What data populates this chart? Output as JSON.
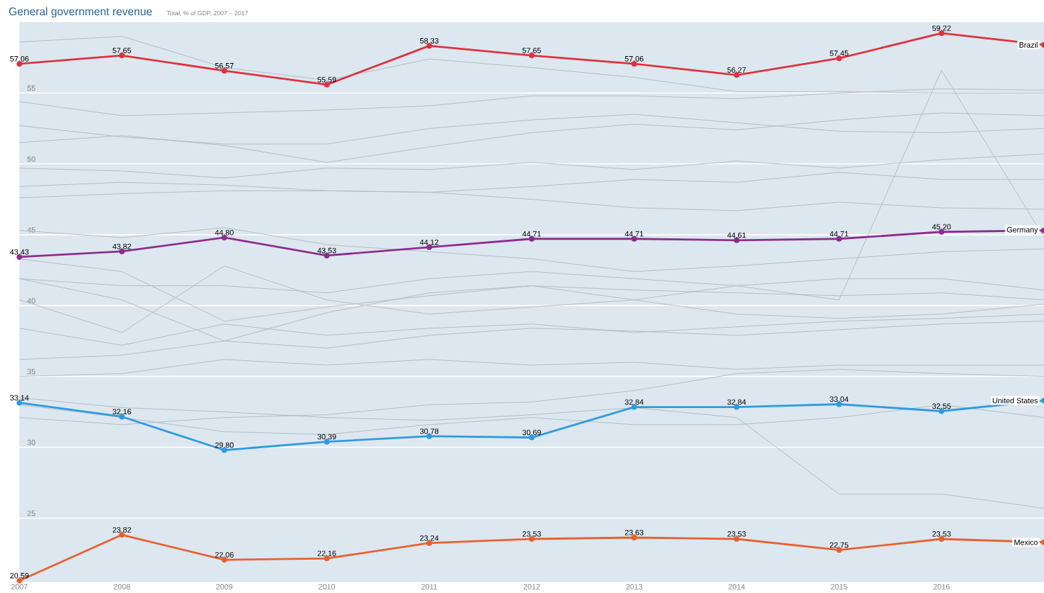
{
  "chart_data": {
    "type": "line",
    "title": "General government revenue",
    "subtitle": "Total, % of GDP, 2007 – 2017",
    "x": [
      2007,
      2008,
      2009,
      2010,
      2011,
      2012,
      2013,
      2014,
      2015,
      2016,
      2017
    ],
    "xlim": [
      2007,
      2017
    ],
    "xticks": [
      2007,
      2008,
      2009,
      2010,
      2011,
      2012,
      2013,
      2014,
      2015,
      2016
    ],
    "ylim": [
      20.5,
      60
    ],
    "yticks": [
      25,
      30,
      35,
      40,
      45,
      50,
      55
    ],
    "grid": "y",
    "line_style": "solid",
    "series": [
      {
        "color": "#b4bcc4",
        "marker": "none",
        "values": [
          58.6,
          59.0,
          56.8,
          55.9,
          57.4,
          56.8,
          56.1,
          55.1,
          55.1,
          55.0,
          55.0
        ]
      },
      {
        "color": "#b4bcc4",
        "marker": "none",
        "values": [
          54.4,
          53.4,
          53.6,
          53.8,
          54.1,
          54.8,
          54.8,
          54.6,
          55.0,
          55.3,
          55.2
        ]
      },
      {
        "color": "#b4bcc4",
        "marker": "none",
        "values": [
          52.7,
          51.9,
          51.4,
          51.4,
          52.5,
          53.1,
          53.5,
          52.9,
          52.3,
          52.2,
          52.5
        ]
      },
      {
        "color": "#b4bcc4",
        "marker": "none",
        "values": [
          51.5,
          52.0,
          51.3,
          50.1,
          51.2,
          52.2,
          52.8,
          52.4,
          53.1,
          53.6,
          53.4
        ]
      },
      {
        "color": "#b4bcc4",
        "marker": "none",
        "values": [
          49.7,
          49.5,
          49.0,
          49.7,
          49.6,
          50.1,
          49.6,
          50.2,
          49.7,
          50.3,
          50.7
        ]
      },
      {
        "color": "#b4bcc4",
        "marker": "none",
        "values": [
          48.4,
          48.7,
          48.5,
          48.1,
          48.0,
          48.4,
          48.9,
          48.7,
          49.4,
          48.9,
          48.9
        ]
      },
      {
        "color": "#b4bcc4",
        "marker": "none",
        "values": [
          47.6,
          47.9,
          48.1,
          48.1,
          48.0,
          47.5,
          46.9,
          46.7,
          47.3,
          46.9,
          46.8
        ]
      },
      {
        "color": "#b4bcc4",
        "marker": "none",
        "values": [
          41.9,
          41.4,
          41.4,
          40.9,
          41.9,
          42.4,
          41.9,
          41.4,
          40.4,
          56.6,
          44.8
        ]
      },
      {
        "color": "#b4bcc4",
        "marker": "none",
        "values": [
          45.3,
          44.8,
          45.5,
          44.3,
          43.8,
          43.3,
          42.4,
          42.8,
          43.3,
          43.8,
          44.0
        ]
      },
      {
        "color": "#b4bcc4",
        "marker": "none",
        "values": [
          41.9,
          40.4,
          37.5,
          39.5,
          40.9,
          41.4,
          40.4,
          41.4,
          41.9,
          41.9,
          41.1
        ]
      },
      {
        "color": "#b4bcc4",
        "marker": "none",
        "values": [
          38.4,
          37.2,
          38.7,
          37.9,
          38.4,
          38.7,
          38.1,
          38.5,
          38.9,
          39.1,
          39.4
        ]
      },
      {
        "color": "#b4bcc4",
        "marker": "none",
        "values": [
          36.2,
          36.5,
          37.5,
          37.0,
          37.9,
          38.4,
          38.2,
          37.9,
          38.3,
          38.7,
          38.9
        ]
      },
      {
        "color": "#b4bcc4",
        "marker": "none",
        "values": [
          35.0,
          35.2,
          36.2,
          35.8,
          36.2,
          35.8,
          36.0,
          35.5,
          35.8,
          35.8,
          35.8
        ]
      },
      {
        "color": "#b4bcc4",
        "marker": "none",
        "values": [
          32.1,
          31.6,
          32.1,
          32.3,
          33.0,
          33.2,
          34.0,
          35.2,
          35.5,
          35.2,
          35.0
        ]
      },
      {
        "color": "#b4bcc4",
        "marker": "none",
        "values": [
          33.5,
          32.8,
          32.5,
          32.1,
          31.9,
          32.3,
          32.8,
          32.1,
          26.7,
          26.7,
          25.7
        ]
      },
      {
        "color": "#b4bcc4",
        "marker": "none",
        "values": [
          33.0,
          32.1,
          31.1,
          30.9,
          31.6,
          32.1,
          31.6,
          31.6,
          32.1,
          33.0,
          32.1
        ]
      },
      {
        "color": "#b4bcc4",
        "marker": "none",
        "values": [
          43.3,
          42.4,
          38.9,
          39.9,
          40.7,
          41.4,
          41.1,
          40.9,
          40.7,
          40.9,
          40.4
        ]
      },
      {
        "color": "#b4bcc4",
        "marker": "none",
        "values": [
          40.4,
          38.1,
          42.8,
          40.4,
          39.4,
          39.9,
          40.4,
          39.4,
          39.1,
          39.4,
          40.1
        ]
      },
      {
        "name": "Brazil",
        "color": "#e0303f",
        "marker": "circle",
        "values": [
          57.06,
          57.65,
          56.57,
          55.59,
          58.33,
          57.65,
          57.06,
          56.27,
          57.45,
          59.22,
          58.4
        ],
        "value_labels": [
          "57.06",
          "57.65",
          "56.57",
          "55.59",
          "58.33",
          "57.65",
          "57.06",
          "56.27",
          "57.45",
          "59.22",
          null
        ]
      },
      {
        "name": "Germany",
        "color": "#8e2c8e",
        "marker": "circle",
        "values": [
          43.43,
          43.82,
          44.8,
          43.53,
          44.12,
          44.71,
          44.71,
          44.61,
          44.71,
          45.2,
          45.3
        ],
        "value_labels": [
          "43.43",
          "43.82",
          "44.80",
          "43.53",
          "44.12",
          "44.71",
          "44.71",
          "44.61",
          "44.71",
          "45.20",
          null
        ]
      },
      {
        "name": "United States",
        "color": "#2e9be0",
        "marker": "circle",
        "values": [
          33.14,
          32.16,
          29.8,
          30.39,
          30.78,
          30.69,
          32.84,
          32.84,
          33.04,
          32.55,
          33.3
        ],
        "value_labels": [
          "33.14",
          "32.16",
          "29.80",
          "30.39",
          "30.78",
          "30.69",
          "32.84",
          "32.84",
          "33.04",
          "32.55",
          null
        ]
      },
      {
        "name": "Mexico",
        "color": "#e8602e",
        "marker": "circle",
        "values": [
          20.59,
          23.82,
          22.06,
          22.16,
          23.24,
          23.53,
          23.63,
          23.53,
          22.75,
          23.53,
          23.3
        ],
        "value_labels": [
          "20.59",
          "23.82",
          "22.06",
          "22.16",
          "23.24",
          "23.53",
          "23.63",
          "23.53",
          "22.75",
          "23.53",
          null
        ]
      }
    ]
  }
}
